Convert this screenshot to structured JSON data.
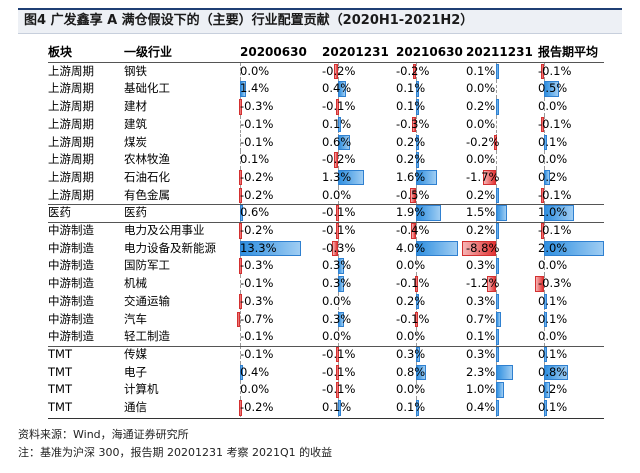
{
  "title": "图4  广发鑫享 A 满仓假设下的（主要）行业配置贡献（2020H1-2021H2）",
  "notes": {
    "source": "资料来源：Wind，海通证券研究所",
    "footnote": "注：基准为沪深 300，报告期 20201231 考察 2021Q1 的收益"
  },
  "colors": {
    "positive": "#2f8fe0",
    "negative": "#e23434",
    "header_line": "#1f3f74"
  },
  "chart_data": {
    "type": "table",
    "columns": [
      "板块",
      "一级行业",
      "20200630",
      "20201231",
      "20210630",
      "20211231",
      "报告期平均"
    ],
    "value_unit": "%",
    "rows": [
      {
        "sector": "上游周期",
        "industry": "钢铁",
        "values": [
          0.0,
          -0.2,
          -0.2,
          0.1,
          -0.1
        ]
      },
      {
        "sector": "上游周期",
        "industry": "基础化工",
        "values": [
          1.4,
          0.4,
          0.1,
          0.0,
          0.5
        ]
      },
      {
        "sector": "上游周期",
        "industry": "建材",
        "values": [
          -0.3,
          -0.1,
          0.1,
          0.2,
          0.0
        ]
      },
      {
        "sector": "上游周期",
        "industry": "建筑",
        "values": [
          -0.1,
          0.1,
          -0.3,
          0.0,
          -0.1
        ]
      },
      {
        "sector": "上游周期",
        "industry": "煤炭",
        "values": [
          -0.1,
          0.6,
          0.2,
          -0.2,
          0.1
        ]
      },
      {
        "sector": "上游周期",
        "industry": "农林牧渔",
        "values": [
          0.1,
          -0.2,
          0.2,
          0.0,
          0.0
        ]
      },
      {
        "sector": "上游周期",
        "industry": "石油石化",
        "values": [
          -0.2,
          1.3,
          1.6,
          -1.7,
          0.2
        ]
      },
      {
        "sector": "上游周期",
        "industry": "有色金属",
        "values": [
          -0.2,
          0.0,
          -0.5,
          0.2,
          -0.1
        ]
      },
      {
        "sector": "医药",
        "industry": "医药",
        "values": [
          0.6,
          -0.1,
          1.9,
          1.5,
          1.0
        ]
      },
      {
        "sector": "中游制造",
        "industry": "电力及公用事业",
        "values": [
          -0.2,
          -0.1,
          -0.4,
          0.2,
          -0.1
        ]
      },
      {
        "sector": "中游制造",
        "industry": "电力设备及新能源",
        "values": [
          13.3,
          -0.3,
          4.0,
          -8.8,
          2.0
        ]
      },
      {
        "sector": "中游制造",
        "industry": "国防军工",
        "values": [
          -0.3,
          0.3,
          0.0,
          0.3,
          0.0
        ]
      },
      {
        "sector": "中游制造",
        "industry": "机械",
        "values": [
          -0.1,
          0.3,
          -0.1,
          -1.2,
          -0.3
        ]
      },
      {
        "sector": "中游制造",
        "industry": "交通运输",
        "values": [
          -0.3,
          0.0,
          0.2,
          0.3,
          0.1
        ]
      },
      {
        "sector": "中游制造",
        "industry": "汽车",
        "values": [
          -0.7,
          0.3,
          -0.1,
          0.7,
          0.1
        ]
      },
      {
        "sector": "中游制造",
        "industry": "轻工制造",
        "values": [
          -0.1,
          0.0,
          0.0,
          0.1,
          0.0
        ]
      },
      {
        "sector": "TMT",
        "industry": "传媒",
        "values": [
          -0.1,
          -0.1,
          0.3,
          0.3,
          0.1
        ]
      },
      {
        "sector": "TMT",
        "industry": "电子",
        "values": [
          0.4,
          -0.1,
          0.8,
          2.3,
          0.8
        ]
      },
      {
        "sector": "TMT",
        "industry": "计算机",
        "values": [
          0.0,
          -0.1,
          0.0,
          1.0,
          0.2
        ]
      },
      {
        "sector": "TMT",
        "industry": "通信",
        "values": [
          -0.2,
          0.1,
          0.1,
          0.4,
          0.1
        ]
      }
    ],
    "group_separators_after": [
      8,
      9,
      16
    ]
  }
}
